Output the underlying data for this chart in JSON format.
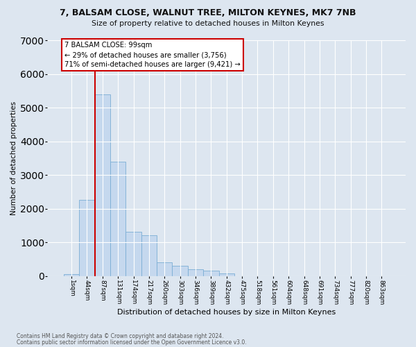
{
  "title": "7, BALSAM CLOSE, WALNUT TREE, MILTON KEYNES, MK7 7NB",
  "subtitle": "Size of property relative to detached houses in Milton Keynes",
  "xlabel": "Distribution of detached houses by size in Milton Keynes",
  "ylabel": "Number of detached properties",
  "annotation_line0": "7 BALSAM CLOSE: 99sqm",
  "annotation_line1": "← 29% of detached houses are smaller (3,756)",
  "annotation_line2": "71% of semi-detached houses are larger (9,421) →",
  "footer_line1": "Contains HM Land Registry data © Crown copyright and database right 2024.",
  "footer_line2": "Contains public sector information licensed under the Open Government Licence v3.0.",
  "bar_color": "#c5d8ee",
  "bar_edgecolor": "#7aadd4",
  "background_color": "#dde6f0",
  "grid_color": "#ffffff",
  "annotation_box_edgecolor": "#cc0000",
  "vline_color": "#cc0000",
  "categories": [
    "1sqm",
    "44sqm",
    "87sqm",
    "131sqm",
    "174sqm",
    "217sqm",
    "260sqm",
    "303sqm",
    "346sqm",
    "389sqm",
    "432sqm",
    "475sqm",
    "518sqm",
    "561sqm",
    "604sqm",
    "648sqm",
    "691sqm",
    "734sqm",
    "777sqm",
    "820sqm",
    "863sqm"
  ],
  "values": [
    55,
    2250,
    5400,
    3400,
    1300,
    1200,
    400,
    300,
    200,
    150,
    70,
    0,
    0,
    0,
    0,
    0,
    0,
    0,
    0,
    0,
    0
  ],
  "ylim": [
    0,
    7000
  ],
  "yticks": [
    0,
    1000,
    2000,
    3000,
    4000,
    5000,
    6000,
    7000
  ],
  "vline_bar_index": 2
}
